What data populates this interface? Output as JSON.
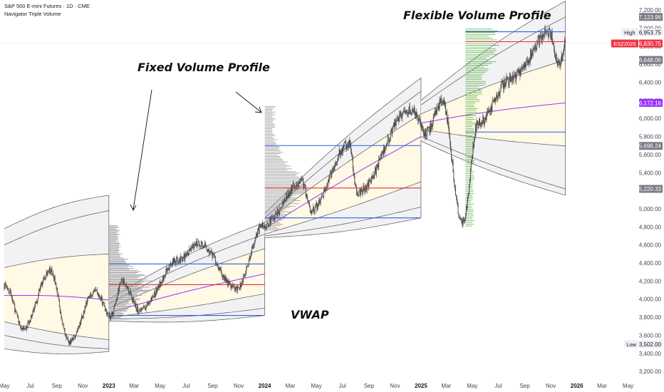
{
  "header": {
    "symbol_line": "S&P 500 E-mini Futures · 1D · CME",
    "indicator_line": "Navigator Triple Volume"
  },
  "colors": {
    "background": "#ffffff",
    "candle": "#4a4a4a",
    "vwap": "#9b30ff",
    "band": "#555555",
    "band_fill": "#fff9e6",
    "profile_gray": "#9a9a9a",
    "profile_green": "#5fb04a",
    "poc": "#e0303a",
    "value_area": "#2f5fd6",
    "price_line": "#f0a0a0"
  },
  "chart_data": {
    "type": "candlestick",
    "x_tick_labels": [
      "May",
      "Jul",
      "Sep",
      "Nov",
      "2023",
      "Mar",
      "May",
      "Jul",
      "Sep",
      "Nov",
      "2024",
      "Mar",
      "May",
      "Jul",
      "Sep",
      "Nov",
      "2025",
      "Mar",
      "May",
      "Jul",
      "Sep",
      "Nov",
      "2026",
      "Mar",
      "May"
    ],
    "x_bold_labels": [
      "2023",
      "2024",
      "2025",
      "2026"
    ],
    "y_ticks": [
      3200,
      3400,
      3600,
      3800,
      4000,
      4200,
      4400,
      4600,
      4800,
      5000,
      5200,
      5400,
      5600,
      5800,
      6000,
      6200,
      6400,
      6600,
      6800,
      7000,
      7200
    ],
    "ylim": [
      3130,
      7280
    ],
    "price_labels": [
      {
        "value": 7123.96,
        "text": "7,123.96",
        "color": "#787b86",
        "prefix": ""
      },
      {
        "value": 6953.75,
        "text": "6,953.75",
        "color": "#ffffff",
        "prefix": "High"
      },
      {
        "value": 6830.75,
        "text": "6,830.75",
        "color": "#f23645",
        "prefix": "ESZ2025"
      },
      {
        "value": 6648.06,
        "text": "6,648.06",
        "color": "#787b86",
        "prefix": ""
      },
      {
        "value": 6172.16,
        "text": "6,172.16",
        "color": "#9b30ff",
        "prefix": ""
      },
      {
        "value": 5696.24,
        "text": "5,696.24",
        "color": "#787b86",
        "prefix": ""
      },
      {
        "value": 5220.33,
        "text": "5,220.33",
        "color": "#787b86",
        "prefix": ""
      },
      {
        "value": 3502.0,
        "text": "3,502.00",
        "color": "#ffffff",
        "prefix": "Low"
      }
    ],
    "price_anchors": [
      [
        "2022-05-01",
        4150
      ],
      [
        "2022-06-16",
        3680
      ],
      [
        "2022-08-16",
        4320
      ],
      [
        "2022-09-30",
        3520
      ],
      [
        "2022-12-01",
        4100
      ],
      [
        "2023-01-05",
        3810
      ],
      [
        "2023-02-02",
        4200
      ],
      [
        "2023-03-13",
        3880
      ],
      [
        "2023-06-15",
        4440
      ],
      [
        "2023-07-31",
        4620
      ],
      [
        "2023-10-27",
        4120
      ],
      [
        "2023-12-29",
        4820
      ],
      [
        "2024-03-28",
        5300
      ],
      [
        "2024-04-19",
        4990
      ],
      [
        "2024-07-16",
        5720
      ],
      [
        "2024-08-05",
        5180
      ],
      [
        "2024-12-06",
        6100
      ],
      [
        "2025-01-13",
        5850
      ],
      [
        "2025-02-19",
        6180
      ],
      [
        "2025-04-08",
        4850
      ],
      [
        "2025-05-15",
        5950
      ],
      [
        "2025-07-31",
        6450
      ],
      [
        "2025-10-29",
        6953
      ],
      [
        "2025-11-20",
        6580
      ],
      [
        "2025-12-05",
        6830
      ]
    ],
    "segments": [
      {
        "start": "2022-05-01",
        "end": "2023-01-01",
        "vwap": [
          4040,
          3990
        ],
        "bands_upper": [
          [
            4350,
            4500
          ],
          [
            4600,
            4980
          ],
          [
            4780,
            5150
          ]
        ],
        "bands_lower": [
          [
            3750,
            3550
          ],
          [
            3600,
            3450
          ],
          [
            3450,
            3420
          ]
        ]
      },
      {
        "start": "2023-01-01",
        "end": "2024-01-01",
        "vwap": [
          3850,
          4280
        ],
        "bands_upper": [
          [
            3900,
            4560
          ],
          [
            3950,
            4720
          ],
          [
            4000,
            4850
          ]
        ],
        "bands_lower": [
          [
            3800,
            4060
          ],
          [
            3780,
            3900
          ],
          [
            3760,
            3820
          ]
        ]
      },
      {
        "start": "2024-01-01",
        "end": "2025-01-01",
        "vwap": [
          4780,
          5800
        ],
        "bands_upper": [
          [
            4850,
            6050
          ],
          [
            4900,
            6300
          ],
          [
            4950,
            6450
          ]
        ],
        "bands_lower": [
          [
            4720,
            5300
          ],
          [
            4700,
            5020
          ],
          [
            4680,
            4900
          ]
        ]
      },
      {
        "start": "2025-01-01",
        "end": "2025-12-05",
        "vwap": [
          5950,
          6172.16
        ],
        "bands_upper": [
          [
            6050,
            6648.06
          ],
          [
            6150,
            7123.96
          ],
          [
            6200,
            7300
          ]
        ],
        "bands_lower": [
          [
            5880,
            5696.24
          ],
          [
            5800,
            5220.33
          ],
          [
            5750,
            5150
          ]
        ]
      }
    ],
    "volume_profiles": [
      {
        "kind": "fixed",
        "x_start": "2023-01-01",
        "x_end": "2024-01-01",
        "low": 3780,
        "high": 4820,
        "poc": 4160,
        "val": 3820,
        "vah": 4390,
        "color": "#9a9a9a"
      },
      {
        "kind": "fixed",
        "x_start": "2024-01-01",
        "x_end": "2025-01-01",
        "low": 4760,
        "high": 6140,
        "poc": 5230,
        "val": 4900,
        "vah": 5700,
        "color": "#9a9a9a"
      },
      {
        "kind": "flexible",
        "x_start": "2025-04-15",
        "x_end": "2025-12-05",
        "low": 4800,
        "high": 7000,
        "poc": 6850,
        "val": 5850,
        "vah": 6960,
        "color": "#5fb04a"
      }
    ]
  },
  "annotations": {
    "fixed_volume_profile": "Fixed Volume Profile",
    "flexible_volume_profile": "Flexible Volume Profile",
    "vwap": "VWAP"
  }
}
